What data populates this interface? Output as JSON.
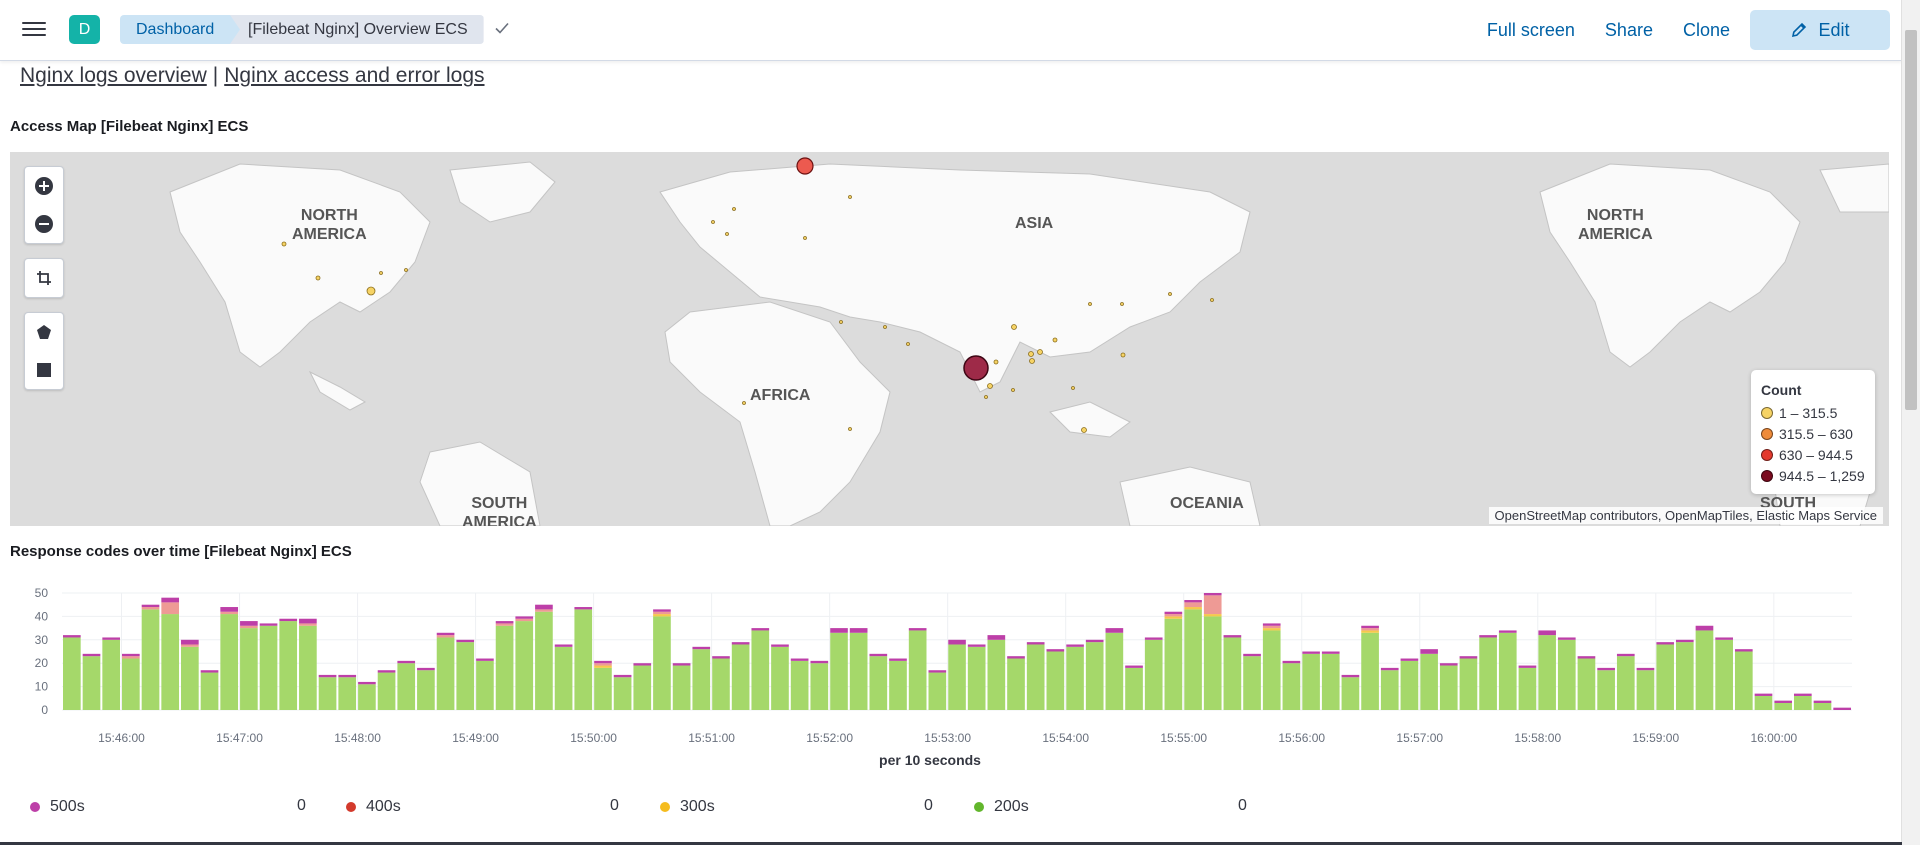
{
  "header": {
    "space_initial": "D",
    "breadcrumbs": [
      "Dashboard",
      "[Filebeat Nginx] Overview ECS"
    ],
    "actions": {
      "full_screen": "Full screen",
      "share": "Share",
      "clone": "Clone",
      "edit": "Edit"
    }
  },
  "markdown": {
    "link1": "Nginx logs overview",
    "separator": "|",
    "link2": "Nginx access and error logs"
  },
  "map_panel": {
    "title": "Access Map [Filebeat Nginx] ECS",
    "continent_labels": {
      "north_america_left": "NORTH\nAMERICA",
      "asia": "ASIA",
      "africa": "AFRICA",
      "south_america": "SOUTH\nAMERICA",
      "oceania": "OCEANIA",
      "north_america_right": "NORTH\nAMERICA",
      "south_right": "SOUTH"
    },
    "legend": {
      "title": "Count",
      "items": [
        {
          "label": "1 – 315.5",
          "color": "#f6d365"
        },
        {
          "label": "315.5 – 630",
          "color": "#ee8b3a"
        },
        {
          "label": "630 – 944.5",
          "color": "#e33a2e"
        },
        {
          "label": "944.5 – 1,259",
          "color": "#7a0b1f"
        }
      ]
    },
    "attribution": "OpenStreetMap contributors, OpenMapTiles, Elastic Maps Service"
  },
  "chart_panel": {
    "title": "Response codes over time [Filebeat Nginx] ECS",
    "chart_data": {
      "type": "bar",
      "stacked": true,
      "ylim": [
        0,
        50
      ],
      "yticks": [
        0,
        10,
        20,
        30,
        40,
        50
      ],
      "xlabel": "per 10 seconds",
      "xticks": [
        "15:46:00",
        "15:47:00",
        "15:48:00",
        "15:49:00",
        "15:50:00",
        "15:51:00",
        "15:52:00",
        "15:53:00",
        "15:54:00",
        "15:55:00",
        "15:56:00",
        "15:57:00",
        "15:58:00",
        "15:59:00",
        "16:00:00"
      ],
      "grid": true,
      "series": [
        {
          "name": "200s",
          "color": "#a5d86a",
          "values": [
            31,
            23,
            30,
            22,
            43,
            41,
            27,
            16,
            41,
            35,
            36,
            38,
            36,
            14,
            14,
            11,
            16,
            20,
            17,
            31,
            29,
            21,
            36,
            38,
            42,
            27,
            43,
            18,
            14,
            19,
            40,
            19,
            26,
            22,
            28,
            34,
            27,
            21,
            20,
            33,
            33,
            23,
            21,
            34,
            16,
            28,
            27,
            30,
            22,
            28,
            25,
            27,
            29,
            33,
            18,
            30,
            39,
            43,
            40,
            31,
            23,
            34,
            20,
            24,
            24,
            14,
            33,
            17,
            21,
            24,
            19,
            22,
            31,
            33,
            18,
            32,
            30,
            22,
            17,
            23,
            17,
            28,
            29,
            34,
            30,
            25,
            6,
            3,
            6,
            3,
            0
          ]
        },
        {
          "name": "300s",
          "color": "#f5c94c",
          "values": [
            0,
            0,
            0,
            0,
            0,
            0,
            0,
            0,
            0,
            0,
            0,
            0,
            0,
            0,
            0,
            0,
            0,
            0,
            0,
            0,
            0,
            0,
            0,
            0,
            0,
            0,
            0,
            1,
            0,
            0,
            1,
            0,
            0,
            0,
            0,
            0,
            0,
            0,
            0,
            0,
            0,
            0,
            0,
            0,
            0,
            0,
            0,
            0,
            0,
            0,
            0,
            0,
            0,
            0,
            0,
            0,
            1,
            1,
            1,
            0,
            0,
            1,
            0,
            0,
            0,
            0,
            1,
            0,
            0,
            0,
            0,
            0,
            0,
            0,
            0,
            0,
            0,
            0,
            0,
            0,
            0,
            0,
            0,
            0,
            0,
            0,
            0,
            0,
            0,
            0,
            0
          ]
        },
        {
          "name": "400s",
          "color": "#ee9a95",
          "values": [
            0,
            0,
            0,
            1,
            1,
            5,
            1,
            0,
            1,
            1,
            0,
            0,
            1,
            0,
            0,
            0,
            0,
            0,
            0,
            1,
            0,
            0,
            1,
            1,
            1,
            0,
            0,
            1,
            0,
            0,
            1,
            0,
            0,
            0,
            0,
            0,
            0,
            0,
            0,
            0,
            0,
            0,
            0,
            0,
            0,
            0,
            0,
            0,
            0,
            0,
            0,
            0,
            0,
            0,
            0,
            0,
            1,
            2,
            8,
            0,
            0,
            1,
            0,
            0,
            0,
            0,
            1,
            0,
            0,
            0,
            0,
            0,
            0,
            0,
            0,
            0,
            0,
            0,
            0,
            0,
            0,
            0,
            0,
            0,
            0,
            0,
            0,
            0,
            0,
            0,
            0
          ]
        },
        {
          "name": "500s",
          "color": "#bd3fa8",
          "values": [
            1,
            1,
            1,
            1,
            1,
            2,
            2,
            1,
            2,
            2,
            1,
            1,
            2,
            1,
            1,
            1,
            1,
            1,
            1,
            1,
            1,
            1,
            1,
            1,
            2,
            1,
            1,
            1,
            1,
            1,
            1,
            1,
            1,
            1,
            1,
            1,
            1,
            1,
            1,
            2,
            2,
            1,
            1,
            1,
            1,
            2,
            1,
            2,
            1,
            1,
            1,
            1,
            1,
            2,
            1,
            1,
            1,
            1,
            1,
            1,
            1,
            1,
            1,
            1,
            1,
            1,
            1,
            1,
            1,
            2,
            1,
            1,
            1,
            1,
            1,
            2,
            1,
            1,
            1,
            1,
            1,
            1,
            1,
            2,
            1,
            1,
            1,
            1,
            1,
            1,
            1
          ]
        }
      ]
    },
    "series_legend": [
      {
        "name": "500s",
        "color": "#bd3fa8",
        "value": "0"
      },
      {
        "name": "400s",
        "color": "#d33a2c",
        "value": "0"
      },
      {
        "name": "300s",
        "color": "#f5bc1e",
        "value": "0"
      },
      {
        "name": "200s",
        "color": "#62b62c",
        "value": "0"
      }
    ]
  }
}
